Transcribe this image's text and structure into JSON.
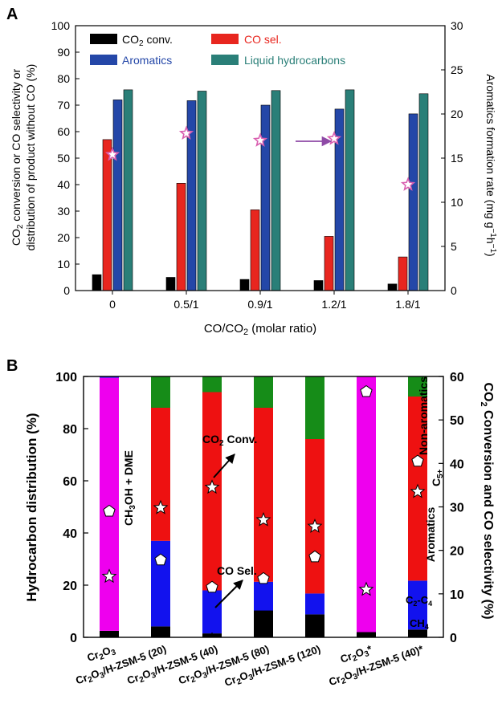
{
  "chart_data": [
    {
      "panel": "A",
      "type": "bar",
      "categories": [
        "0",
        "0.5/1",
        "0.9/1",
        "1.2/1",
        "1.8/1"
      ],
      "xlabel": "CO/CO2 (molar ratio)",
      "ylabel": "CO2 conversion or CO selectivity or distribution of product without CO (%)",
      "ylim": [
        0,
        100
      ],
      "yticks": [
        0,
        10,
        20,
        30,
        40,
        50,
        60,
        70,
        80,
        90,
        100
      ],
      "y2label": "Aromatics formation rate (mg g-1h-1)",
      "y2lim": [
        0,
        30
      ],
      "y2ticks": [
        0,
        5,
        10,
        15,
        20,
        25,
        30
      ],
      "legend_position": "top",
      "series": [
        {
          "name": "CO2 conv.",
          "color": "#000000",
          "values": [
            6,
            5,
            4.2,
            3.8,
            2.5
          ]
        },
        {
          "name": "CO sel.",
          "color": "#e8261f",
          "values": [
            57,
            40.5,
            30.5,
            20.5,
            12.7
          ]
        },
        {
          "name": "Aromatics",
          "color": "#2447a8",
          "values": [
            72,
            71.7,
            70,
            68.5,
            66.7
          ]
        },
        {
          "name": "Liquid hydrocarbons",
          "color": "#2a7f78",
          "values": [
            75.8,
            75.3,
            75.5,
            75.8,
            74.3
          ]
        }
      ],
      "rate_series": {
        "marker": "star",
        "color": "#d95fb0",
        "values": [
          15.4,
          17.8,
          17,
          17.2,
          12
        ]
      },
      "arrow": {
        "direction": "right",
        "color": "#8e4aa6"
      }
    },
    {
      "panel": "B",
      "type": "bar",
      "stacked": true,
      "categories": [
        "Cr2O3",
        "Cr2O3/H-ZSM-5 (20)",
        "Cr2O3/H-ZSM-5 (40)",
        "Cr2O3/H-ZSM-5 (80)",
        "Cr2O3/H-ZSM-5 (120)",
        "Cr2O3*",
        "Cr2O3/H-ZSM-5 (40)*"
      ],
      "ylabel": "Hydrocarbon distribution (%)",
      "ylim": [
        0,
        100
      ],
      "yticks": [
        0,
        20,
        40,
        60,
        80,
        100
      ],
      "y2label": "CO2 Conversion and CO selectivity (%)",
      "y2lim": [
        0,
        60
      ],
      "y2ticks": [
        0,
        10,
        20,
        30,
        40,
        50,
        60
      ],
      "series": [
        {
          "name": "CH4",
          "color": "#000000",
          "values": [
            2.5,
            4.2,
            1.5,
            10.3,
            8.8,
            2,
            3
          ]
        },
        {
          "name": "C2-C4",
          "color": "#1212ee",
          "values": [
            0,
            32.8,
            16.5,
            11,
            8,
            0,
            18.7
          ]
        },
        {
          "name": "Aromatics",
          "color": "#ee1111",
          "values": [
            0,
            51,
            76,
            66.7,
            59.2,
            0,
            70.6
          ]
        },
        {
          "name": "Non-aromatics C5+",
          "color": "#168c18",
          "values": [
            0,
            12,
            6,
            12,
            24,
            0,
            7.7
          ]
        },
        {
          "name": "CH3OH + DME",
          "color": "#ee00ee",
          "values": [
            97,
            0,
            0,
            0,
            0,
            98,
            0
          ]
        },
        {
          "name": "_top_sliver",
          "color": "#1212ee",
          "values": [
            0.5,
            0,
            0,
            0,
            0,
            0,
            0
          ]
        }
      ],
      "co2_conversion": {
        "marker": "star",
        "values": [
          14,
          29.8,
          34.5,
          27,
          25.5,
          11,
          33.5
        ]
      },
      "co_selectivity": {
        "marker": "pentagon",
        "values": [
          29,
          17.8,
          11.5,
          13.5,
          18.5,
          56.5,
          40.5
        ]
      }
    }
  ],
  "labels": {
    "panel_a": "A",
    "panel_b": "B",
    "legend": [
      "CO2 conv.",
      "CO sel.",
      "Aromatics",
      "Liquid hydrocarbons"
    ],
    "a_xlabel": "CO/CO2 (molar ratio)",
    "a_ylabel_line1": "CO2 conversion or CO selectivity or",
    "a_ylabel_line2": "distribution of product without CO (%)",
    "a_y2label": "Aromatics formation rate (mg g-1h-1)",
    "b_ylabel": "Hydrocarbon distribution (%)",
    "b_y2label": "CO2 Conversion and CO selectivity (%)",
    "b_inner": {
      "ch3oh_dme": "CH3OH + DME",
      "co2_conv": "CO2 Conv.",
      "co_sel": "CO Sel.",
      "non_aromatics": "Non-aromatics",
      "c5plus": "C5+",
      "aromatics": "Aromatics",
      "c2c4": "C2-C4",
      "ch4": "CH4"
    }
  }
}
